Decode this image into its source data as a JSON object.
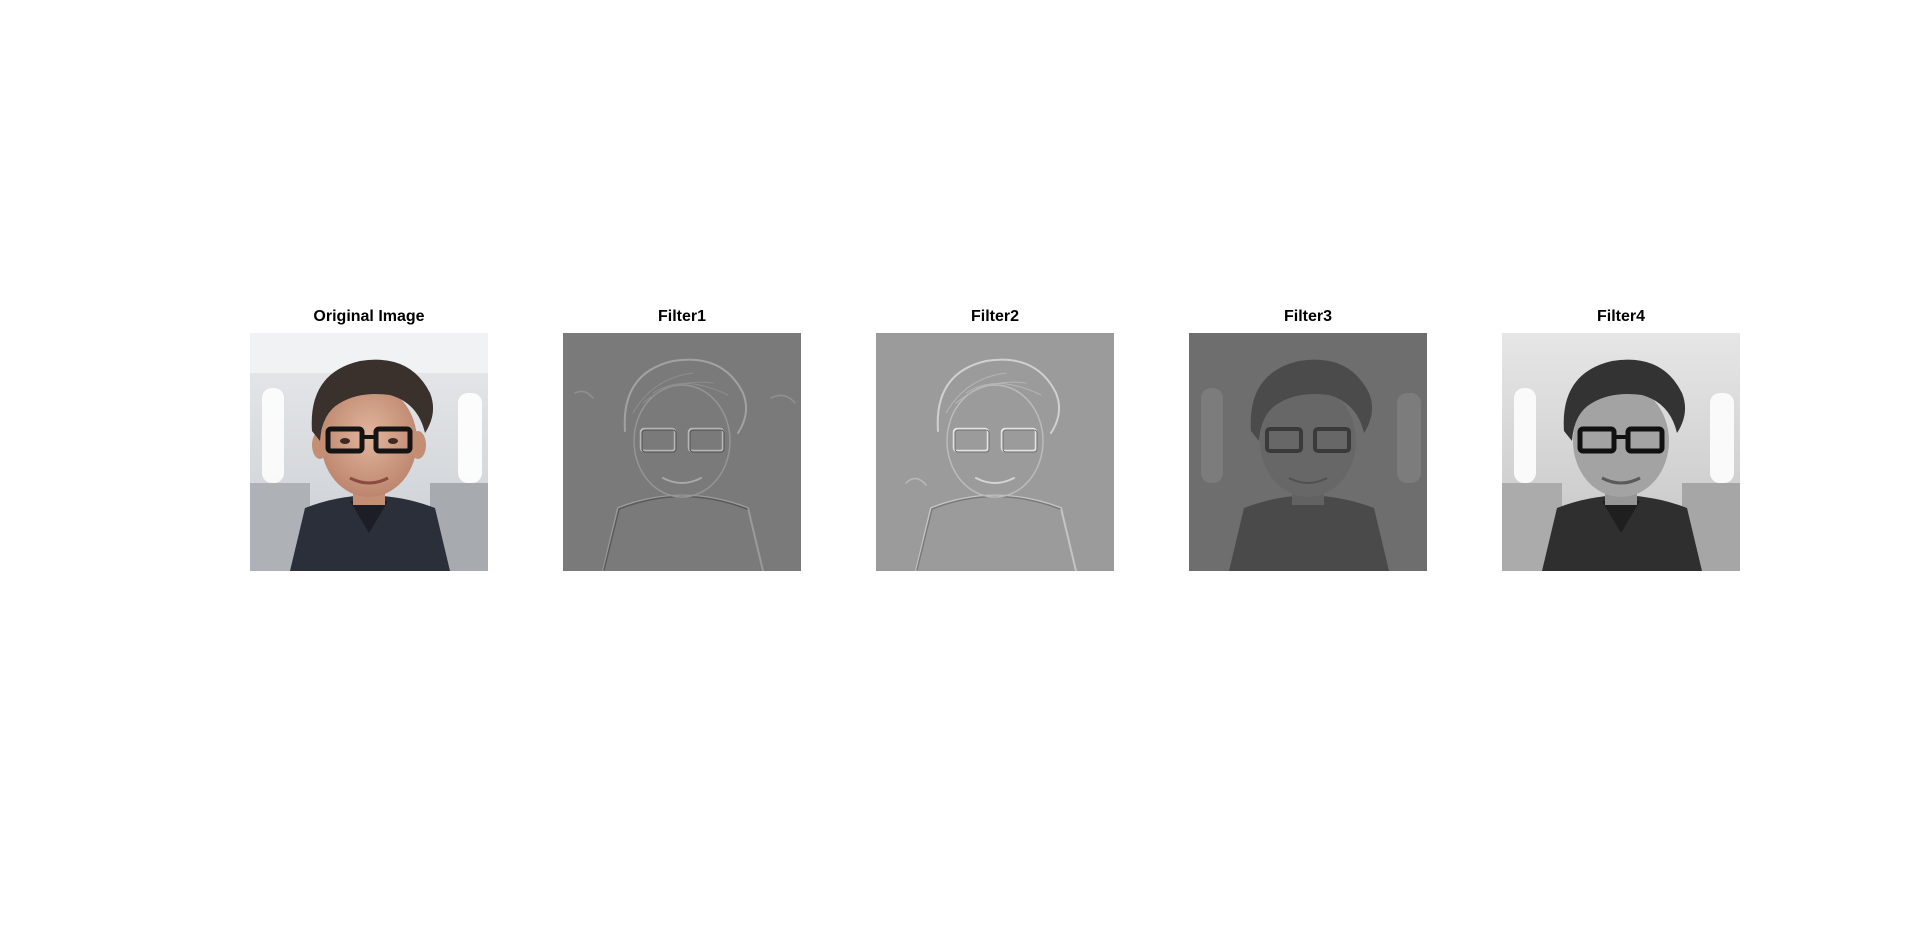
{
  "figure": {
    "panels": [
      {
        "title": "Original Image",
        "render": "color"
      },
      {
        "title": "Filter1",
        "render": "emboss"
      },
      {
        "title": "Filter2",
        "render": "emboss-light"
      },
      {
        "title": "Filter3",
        "render": "dark-gray"
      },
      {
        "title": "Filter4",
        "render": "grayscale"
      }
    ]
  }
}
